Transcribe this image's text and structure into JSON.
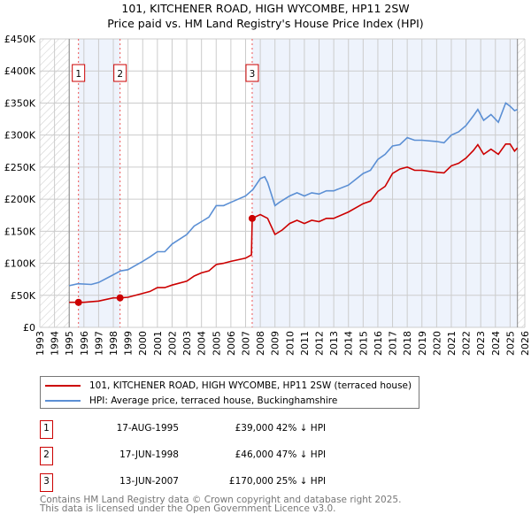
{
  "chart_data": {
    "type": "line",
    "title": "101, KITCHENER ROAD, HIGH WYCOMBE, HP11 2SW",
    "subtitle": "Price paid vs. HM Land Registry's House Price Index (HPI)",
    "xlim": [
      1993,
      2026
    ],
    "ylim": [
      0,
      450000
    ],
    "x_ticks": [
      "1993",
      "1994",
      "1995",
      "1996",
      "1997",
      "1998",
      "1999",
      "2000",
      "2001",
      "2002",
      "2003",
      "2004",
      "2005",
      "2006",
      "2007",
      "2008",
      "2009",
      "2010",
      "2011",
      "2012",
      "2013",
      "2014",
      "2015",
      "2016",
      "2017",
      "2018",
      "2019",
      "2020",
      "2021",
      "2022",
      "2023",
      "2024",
      "2025",
      "2026"
    ],
    "y_ticks": [
      {
        "v": 0,
        "label": "£0"
      },
      {
        "v": 50000,
        "label": "£50K"
      },
      {
        "v": 100000,
        "label": "£100K"
      },
      {
        "v": 150000,
        "label": "£150K"
      },
      {
        "v": 200000,
        "label": "£200K"
      },
      {
        "v": 250000,
        "label": "£250K"
      },
      {
        "v": 300000,
        "label": "£300K"
      },
      {
        "v": 350000,
        "label": "£350K"
      },
      {
        "v": 400000,
        "label": "£400K"
      },
      {
        "v": 450000,
        "label": "£450K"
      }
    ],
    "grid": true,
    "data_range": [
      1995,
      2025.5
    ],
    "series": [
      {
        "name": "HPI: Average price, terraced house, Buckinghamshire",
        "color": "#5b8fd4",
        "x": [
          1995,
          1995.6,
          1996.5,
          1997,
          1998,
          1998.5,
          1999,
          2000,
          2000.5,
          2001,
          2001.5,
          2002,
          2003,
          2003.5,
          2004,
          2004.5,
          2005,
          2005.5,
          2006,
          2007,
          2007.5,
          2008,
          2008.3,
          2008.5,
          2009,
          2009.3,
          2010,
          2010.5,
          2011,
          2011.5,
          2012,
          2012.5,
          2013,
          2014,
          2015,
          2015.5,
          2016,
          2016.5,
          2017,
          2017.5,
          2018,
          2018.5,
          2019,
          2020,
          2020.5,
          2021,
          2021.5,
          2022,
          2022.5,
          2022.8,
          2023.2,
          2023.7,
          2024.2,
          2024.7,
          2025,
          2025.3,
          2025.5
        ],
        "y": [
          65000,
          68000,
          67000,
          70000,
          82000,
          88000,
          90000,
          103000,
          110000,
          118000,
          118000,
          130000,
          145000,
          158000,
          165000,
          172000,
          190000,
          190000,
          195000,
          205000,
          215000,
          232000,
          235000,
          226000,
          190000,
          195000,
          205000,
          210000,
          205000,
          210000,
          208000,
          213000,
          213000,
          222000,
          240000,
          245000,
          262000,
          270000,
          283000,
          285000,
          296000,
          292000,
          292000,
          290000,
          288000,
          300000,
          305000,
          315000,
          330000,
          340000,
          323000,
          332000,
          320000,
          350000,
          345000,
          338000,
          340000
        ]
      },
      {
        "name": "101, KITCHENER ROAD, HIGH WYCOMBE, HP11 2SW (terraced house)",
        "color": "#cc0000",
        "x": [
          1995,
          1995.63,
          1996,
          1997,
          1998,
          1998.46,
          1999,
          2000,
          2000.5,
          2001,
          2001.5,
          2002,
          2003,
          2003.5,
          2004,
          2004.5,
          2005,
          2005.5,
          2006,
          2007,
          2007.4,
          2007.45,
          2008,
          2008.5,
          2009,
          2009.5,
          2010,
          2010.5,
          2011,
          2011.5,
          2012,
          2012.5,
          2013,
          2014,
          2015,
          2015.5,
          2016,
          2016.5,
          2017,
          2017.5,
          2018,
          2018.5,
          2019,
          2020,
          2020.5,
          2021,
          2021.5,
          2022,
          2022.5,
          2022.8,
          2023.2,
          2023.7,
          2024.2,
          2024.7,
          2025,
          2025.3,
          2025.5
        ],
        "y": [
          39000,
          39000,
          39000,
          41000,
          46000,
          46000,
          47000,
          53000,
          56000,
          62000,
          62000,
          66000,
          72000,
          80000,
          85000,
          88000,
          98000,
          100000,
          103000,
          108000,
          113000,
          170000,
          176000,
          170000,
          145000,
          152000,
          162000,
          167000,
          162000,
          167000,
          165000,
          170000,
          170000,
          180000,
          193000,
          197000,
          212000,
          220000,
          240000,
          247000,
          250000,
          245000,
          245000,
          242000,
          241000,
          252000,
          256000,
          264000,
          276000,
          285000,
          270000,
          278000,
          270000,
          286000,
          286000,
          275000,
          280000
        ]
      }
    ],
    "sales": [
      {
        "label": "1",
        "x": 1995.63,
        "y": 39000,
        "date": "17-AUG-1995",
        "price": "£39,000",
        "hpi": "42% ↓ HPI"
      },
      {
        "label": "2",
        "x": 1998.46,
        "y": 46000,
        "date": "17-JUN-1998",
        "price": "£46,000",
        "hpi": "47% ↓ HPI"
      },
      {
        "label": "3",
        "x": 2007.45,
        "y": 170000,
        "date": "13-JUN-2007",
        "price": "£170,000",
        "hpi": "25% ↓ HPI"
      }
    ]
  },
  "legend": {
    "red": "101, KITCHENER ROAD, HIGH WYCOMBE, HP11 2SW (terraced house)",
    "blue": "HPI: Average price, terraced house, Buckinghamshire"
  },
  "footer": {
    "line1": "Contains HM Land Registry data © Crown copyright and database right 2025.",
    "line2": "This data is licensed under the Open Government Licence v3.0."
  }
}
